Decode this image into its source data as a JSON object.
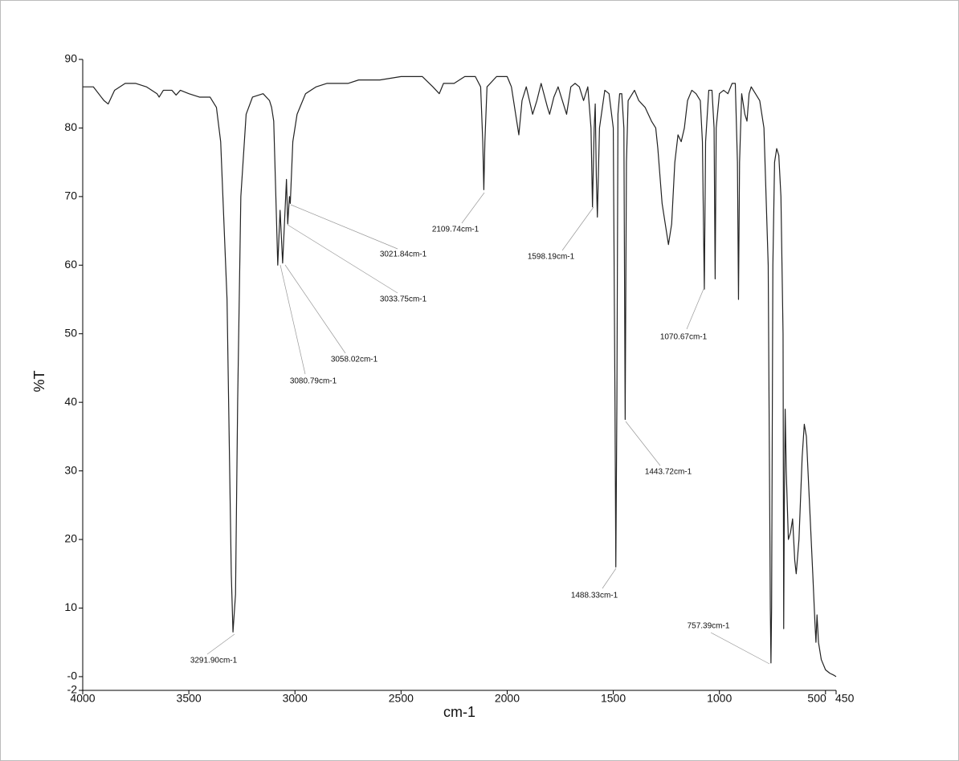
{
  "chart_data": {
    "type": "line",
    "ylabel": "%T",
    "xlabel": "cm-1",
    "xlim": [
      4000,
      450
    ],
    "ylim": [
      -2,
      90
    ],
    "xticks": [
      4000,
      3500,
      3000,
      2500,
      2000,
      1500,
      1000,
      500,
      450
    ],
    "yticks": [
      -2,
      {
        "value": 0,
        "label": "-0"
      },
      10,
      20,
      30,
      40,
      50,
      60,
      70,
      80,
      90
    ],
    "color": "#222222",
    "x": [
      4000,
      3950,
      3900,
      3880,
      3850,
      3800,
      3750,
      3700,
      3650,
      3640,
      3620,
      3580,
      3560,
      3540,
      3500,
      3450,
      3400,
      3370,
      3350,
      3320,
      3300,
      3292,
      3280,
      3270,
      3255,
      3230,
      3200,
      3150,
      3120,
      3110,
      3100,
      3090,
      3081,
      3070,
      3058,
      3040,
      3034,
      3026,
      3022,
      3010,
      2990,
      2970,
      2950,
      2900,
      2850,
      2800,
      2750,
      2700,
      2600,
      2500,
      2400,
      2350,
      2320,
      2300,
      2250,
      2200,
      2150,
      2125,
      2115,
      2110,
      2105,
      2095,
      2050,
      2000,
      1980,
      1960,
      1945,
      1930,
      1910,
      1880,
      1860,
      1840,
      1810,
      1800,
      1780,
      1760,
      1730,
      1720,
      1700,
      1680,
      1660,
      1640,
      1620,
      1605,
      1598,
      1590,
      1585,
      1580,
      1575,
      1565,
      1540,
      1520,
      1500,
      1492,
      1488,
      1483,
      1478,
      1470,
      1460,
      1450,
      1444,
      1438,
      1430,
      1400,
      1380,
      1350,
      1320,
      1300,
      1290,
      1280,
      1270,
      1255,
      1240,
      1225,
      1210,
      1195,
      1180,
      1165,
      1150,
      1130,
      1110,
      1090,
      1080,
      1071,
      1065,
      1050,
      1035,
      1025,
      1020,
      1015,
      1000,
      980,
      960,
      940,
      925,
      915,
      910,
      905,
      895,
      880,
      870,
      860,
      850,
      830,
      810,
      790,
      770,
      760,
      757,
      754,
      748,
      740,
      730,
      720,
      710,
      700,
      697,
      694,
      690,
      685,
      675,
      665,
      655,
      645,
      638,
      625,
      610,
      600,
      590,
      575,
      560,
      550,
      545,
      540,
      533,
      520,
      500,
      480,
      460,
      450
    ],
    "values": [
      86,
      86,
      84,
      83.5,
      85.5,
      86.5,
      86.5,
      86,
      85,
      84.5,
      85.5,
      85.5,
      84.8,
      85.5,
      85,
      84.5,
      84.5,
      83,
      78,
      55,
      15,
      6.5,
      12,
      40,
      70,
      82,
      84.5,
      85,
      84,
      83,
      81,
      70,
      60,
      68,
      60.3,
      72.5,
      66,
      70,
      69,
      78,
      82,
      83.5,
      85,
      86,
      86.5,
      86.5,
      86.5,
      87,
      87,
      87.5,
      87.5,
      86,
      85,
      86.5,
      86.5,
      87.5,
      87.5,
      86,
      78,
      71,
      78,
      86,
      87.5,
      87.5,
      86,
      82,
      79,
      84,
      86,
      82,
      84,
      86.5,
      83,
      82,
      84.5,
      86,
      83,
      82,
      86,
      86.5,
      86,
      84,
      86,
      80,
      68.5,
      80,
      83.5,
      73,
      67,
      80,
      85.5,
      85,
      80,
      40,
      16,
      40,
      82,
      85,
      85,
      80,
      37.5,
      75,
      84,
      85.5,
      84,
      83,
      81,
      80,
      77,
      73,
      69,
      66,
      63,
      66,
      75,
      79,
      78,
      80,
      84,
      85.5,
      85,
      84,
      78,
      56.5,
      78,
      85.5,
      85.5,
      80,
      58,
      80,
      85,
      85.5,
      85,
      86.5,
      86.5,
      75,
      55,
      75,
      85,
      82,
      81,
      85,
      86,
      85,
      84,
      80,
      60,
      10,
      2,
      10,
      60,
      75,
      77,
      76,
      70,
      50,
      7,
      25,
      39,
      30,
      20,
      21,
      23,
      17,
      15,
      20,
      32,
      36.8,
      35,
      25,
      15,
      8,
      5,
      9,
      5,
      2.5,
      1,
      0.5,
      0.2,
      0
    ],
    "annotations": [
      "3291.90cm-1",
      "3080.79cm-1",
      "3058.02cm-1",
      "3033.75cm-1",
      "3021.84cm-1",
      "2109.74cm-1",
      "1598.19cm-1",
      "1488.33cm-1",
      "1443.72cm-1",
      "1070.67cm-1",
      "757.39cm-1"
    ]
  }
}
